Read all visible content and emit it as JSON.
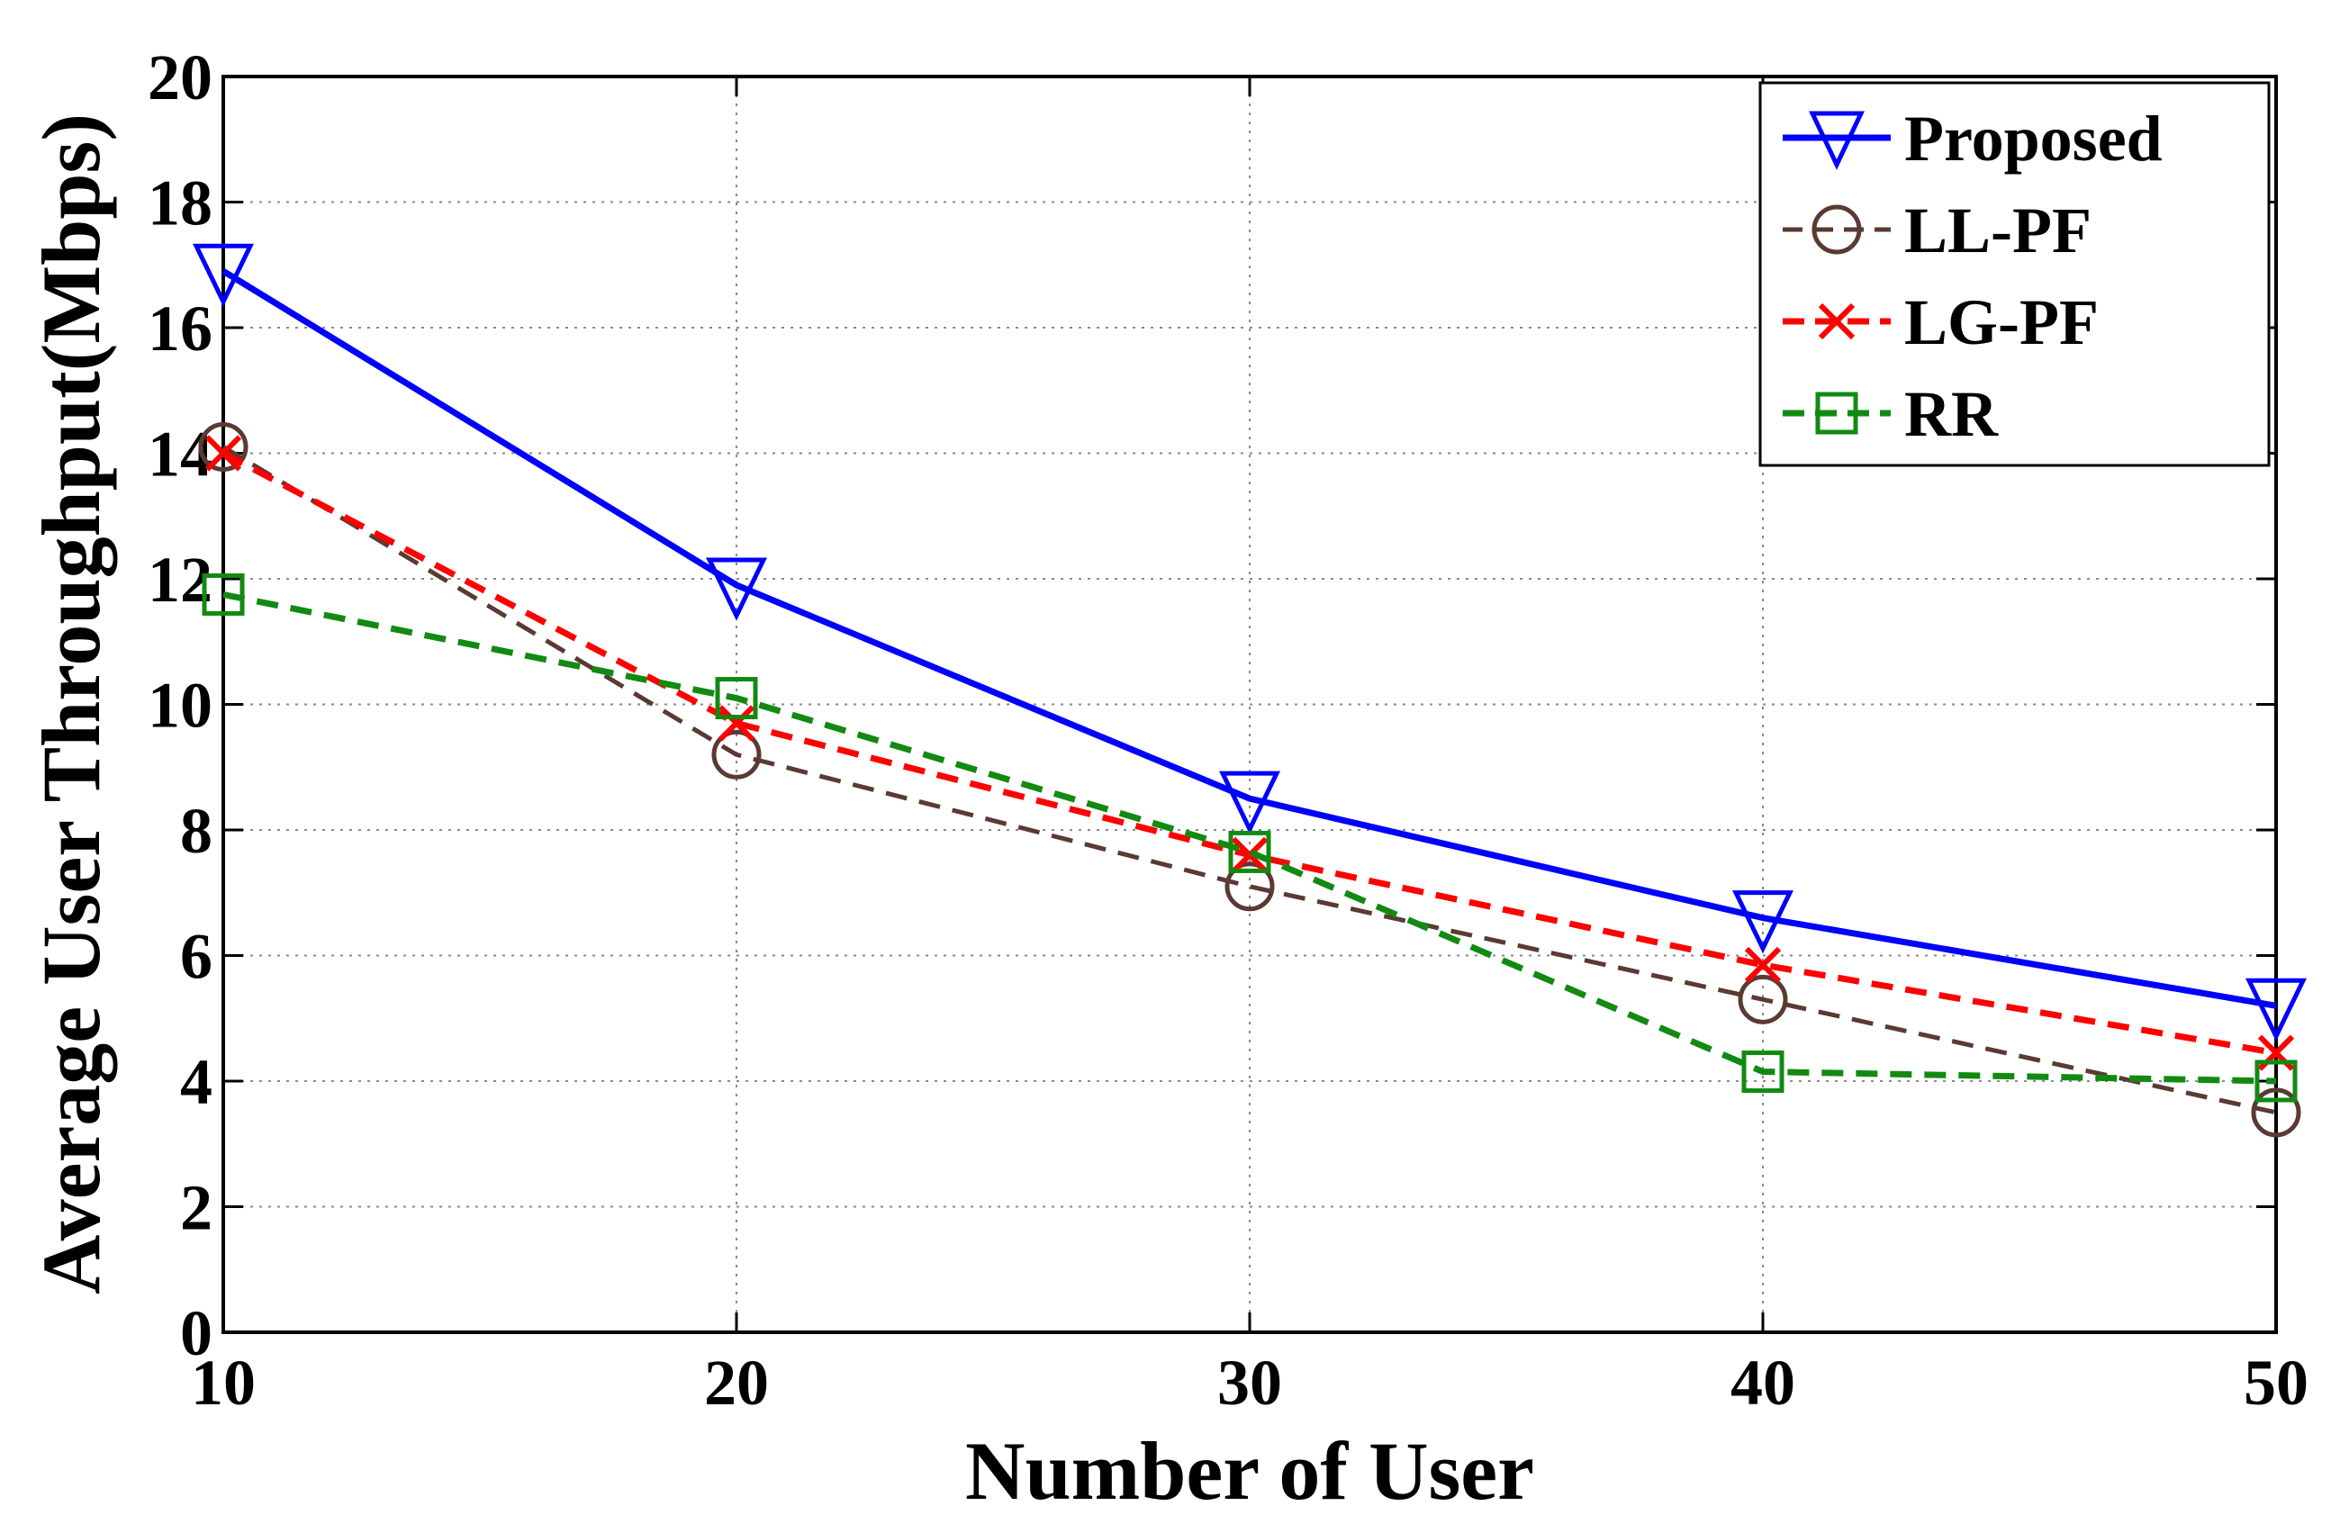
{
  "chart_data": {
    "type": "line",
    "title": "",
    "xlabel": "Number of User",
    "ylabel": "Average User Throughput(Mbps)",
    "xlim": [
      10,
      50
    ],
    "ylim": [
      0,
      20
    ],
    "xticks": [
      10,
      20,
      30,
      40,
      50
    ],
    "yticks": [
      0,
      2,
      4,
      6,
      8,
      10,
      12,
      14,
      16,
      18,
      20
    ],
    "grid": true,
    "legend_position": "top-right",
    "x": [
      10,
      20,
      30,
      40,
      50
    ],
    "series": [
      {
        "name": "Proposed",
        "values": [
          16.9,
          11.9,
          8.5,
          6.6,
          5.2
        ],
        "color": "#0000ff",
        "marker": "triangle-down",
        "line": "solid"
      },
      {
        "name": "LL-PF",
        "values": [
          14.1,
          9.2,
          7.1,
          5.3,
          3.5
        ],
        "color": "#5a3a32",
        "marker": "circle",
        "line": "dashed"
      },
      {
        "name": "LG-PF",
        "values": [
          14.0,
          9.7,
          7.6,
          5.85,
          4.45
        ],
        "color": "#ff0000",
        "marker": "x",
        "line": "dashed"
      },
      {
        "name": "RR",
        "values": [
          11.75,
          10.1,
          7.65,
          4.15,
          4.0
        ],
        "color": "#128a12",
        "marker": "square",
        "line": "dashed"
      }
    ]
  }
}
